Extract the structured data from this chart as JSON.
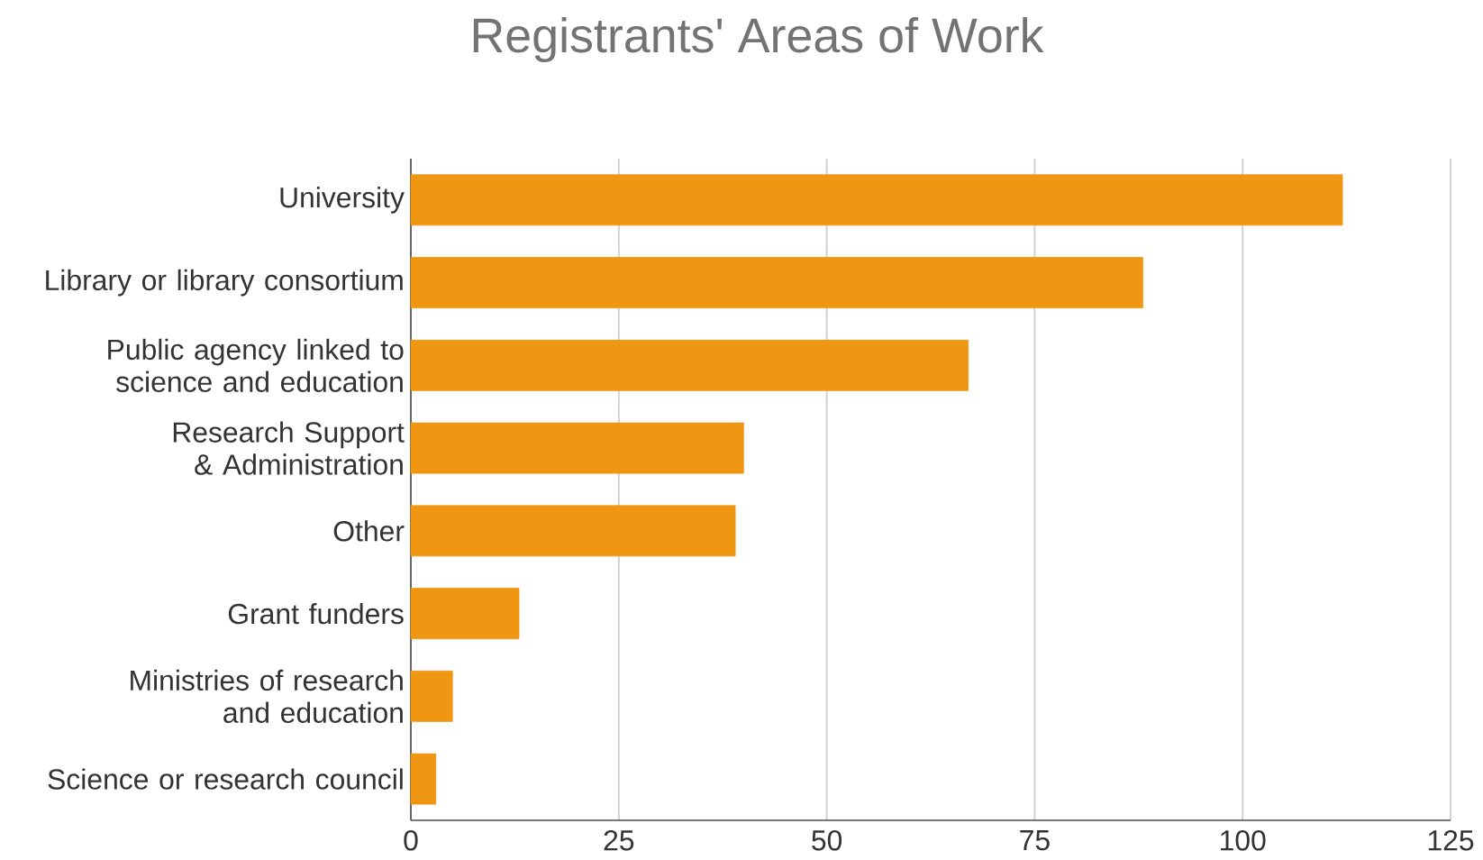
{
  "chart_data": {
    "type": "bar",
    "orientation": "horizontal",
    "title": "Registrants' Areas of Work",
    "categories": [
      "University",
      "Library or library consortium",
      "Public agency linked to science and education",
      "Research Support & Administration",
      "Other",
      "Grant funders",
      "Ministries of research and education",
      "Science or research council"
    ],
    "values": [
      112,
      88,
      67,
      40,
      39,
      13,
      5,
      3
    ],
    "color": "#ef9612",
    "xlim": [
      0,
      125
    ],
    "xticks": [
      0,
      25,
      50,
      75,
      100,
      125
    ],
    "grid": "x"
  }
}
